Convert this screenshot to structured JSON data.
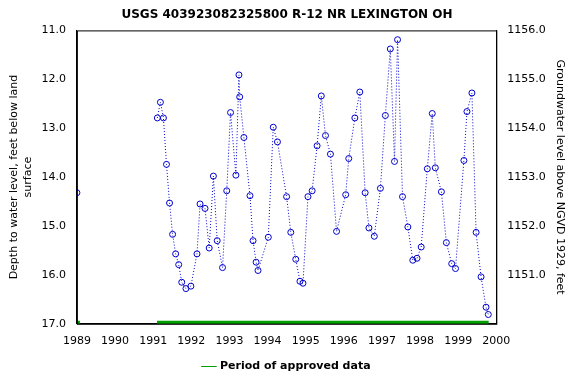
{
  "chart_data": {
    "type": "line",
    "title": "USGS 403923082325800 R-12 NR LEXINGTON OH",
    "x_label": null,
    "y_label": [
      "Depth to water level, feet below land",
      "surface"
    ],
    "y2_label": "Groundwater level above NGVD 1929, feet",
    "xlim": [
      1989,
      2000
    ],
    "xticks": [
      1989,
      1990,
      1991,
      1992,
      1993,
      1994,
      1995,
      1996,
      1997,
      1998,
      1999,
      2000
    ],
    "ylim": [
      17,
      11
    ],
    "yticks": [
      {
        "value": 11,
        "label": "11.0"
      },
      {
        "value": 12,
        "label": "12.0"
      },
      {
        "value": 13,
        "label": "13.0"
      },
      {
        "value": 14,
        "label": "14.0"
      },
      {
        "value": 15,
        "label": "15.0"
      },
      {
        "value": 16,
        "label": "16.0"
      },
      {
        "value": 17,
        "label": "17.0"
      }
    ],
    "y2lim": [
      1150,
      1156
    ],
    "y2ticks": [
      {
        "value": 1151,
        "label": "1151.0"
      },
      {
        "value": 1152,
        "label": "1152.0"
      },
      {
        "value": 1153,
        "label": "1153.0"
      },
      {
        "value": 1154,
        "label": "1154.0"
      },
      {
        "value": 1155,
        "label": "1155.0"
      },
      {
        "value": 1156,
        "label": "1156.0"
      }
    ],
    "grid": false,
    "legend": "bottom",
    "series": [
      {
        "color": "#0000cc",
        "marker": "circle",
        "line_style": "dotted",
        "x": [
          1989.0,
          null,
          1991.11,
          1991.19,
          1991.27,
          1991.35,
          1991.43,
          1991.51,
          1991.59,
          1991.67,
          1991.75,
          1991.86,
          1991.99,
          1992.15,
          1992.23,
          1992.36,
          1992.47,
          1992.58,
          1992.68,
          1992.82,
          1992.93,
          1993.03,
          1993.17,
          1993.25,
          1993.27,
          1993.38,
          1993.54,
          1993.62,
          1993.7,
          1993.75,
          1994.02,
          1994.15,
          1994.26,
          1994.5,
          1994.61,
          1994.74,
          1994.85,
          1994.93,
          1995.06,
          1995.17,
          1995.3,
          1995.41,
          1995.52,
          1995.65,
          1995.81,
          1996.05,
          1996.13,
          1996.29,
          1996.42,
          1996.56,
          1996.66,
          1996.8,
          1996.96,
          1997.09,
          1997.22,
          1997.33,
          1997.41,
          1997.54,
          1997.68,
          1997.81,
          1997.92,
          1998.03,
          1998.19,
          1998.32,
          1998.4,
          1998.56,
          1998.69,
          1998.83,
          1998.93,
          1999.15,
          1999.23,
          1999.36,
          1999.47,
          1999.6,
          1999.73,
          1999.79
        ],
        "values": [
          14.32,
          null,
          12.79,
          12.47,
          12.79,
          13.74,
          14.53,
          15.17,
          15.57,
          15.79,
          16.15,
          16.28,
          16.23,
          15.57,
          14.55,
          14.64,
          15.45,
          13.98,
          15.3,
          15.85,
          14.28,
          12.68,
          13.96,
          11.91,
          12.36,
          13.19,
          14.38,
          15.3,
          15.74,
          15.91,
          15.23,
          12.98,
          13.28,
          14.4,
          15.13,
          15.68,
          16.13,
          16.17,
          14.4,
          14.28,
          13.36,
          12.34,
          13.15,
          13.53,
          15.11,
          14.36,
          13.62,
          12.79,
          12.26,
          14.32,
          15.04,
          15.21,
          14.23,
          12.74,
          11.38,
          13.68,
          11.19,
          14.4,
          15.02,
          15.7,
          15.66,
          15.43,
          13.83,
          12.7,
          13.81,
          14.3,
          15.34,
          15.77,
          15.87,
          13.66,
          12.66,
          12.28,
          15.13,
          16.04,
          16.66,
          16.81
        ]
      },
      {
        "name": "Period of approved data",
        "color": "#00a000",
        "line_style": "solid",
        "x": [
          1989.0,
          1989.08,
          null,
          1991.1,
          1999.8
        ],
        "values": [
          17,
          17,
          null,
          17,
          17
        ]
      }
    ]
  }
}
